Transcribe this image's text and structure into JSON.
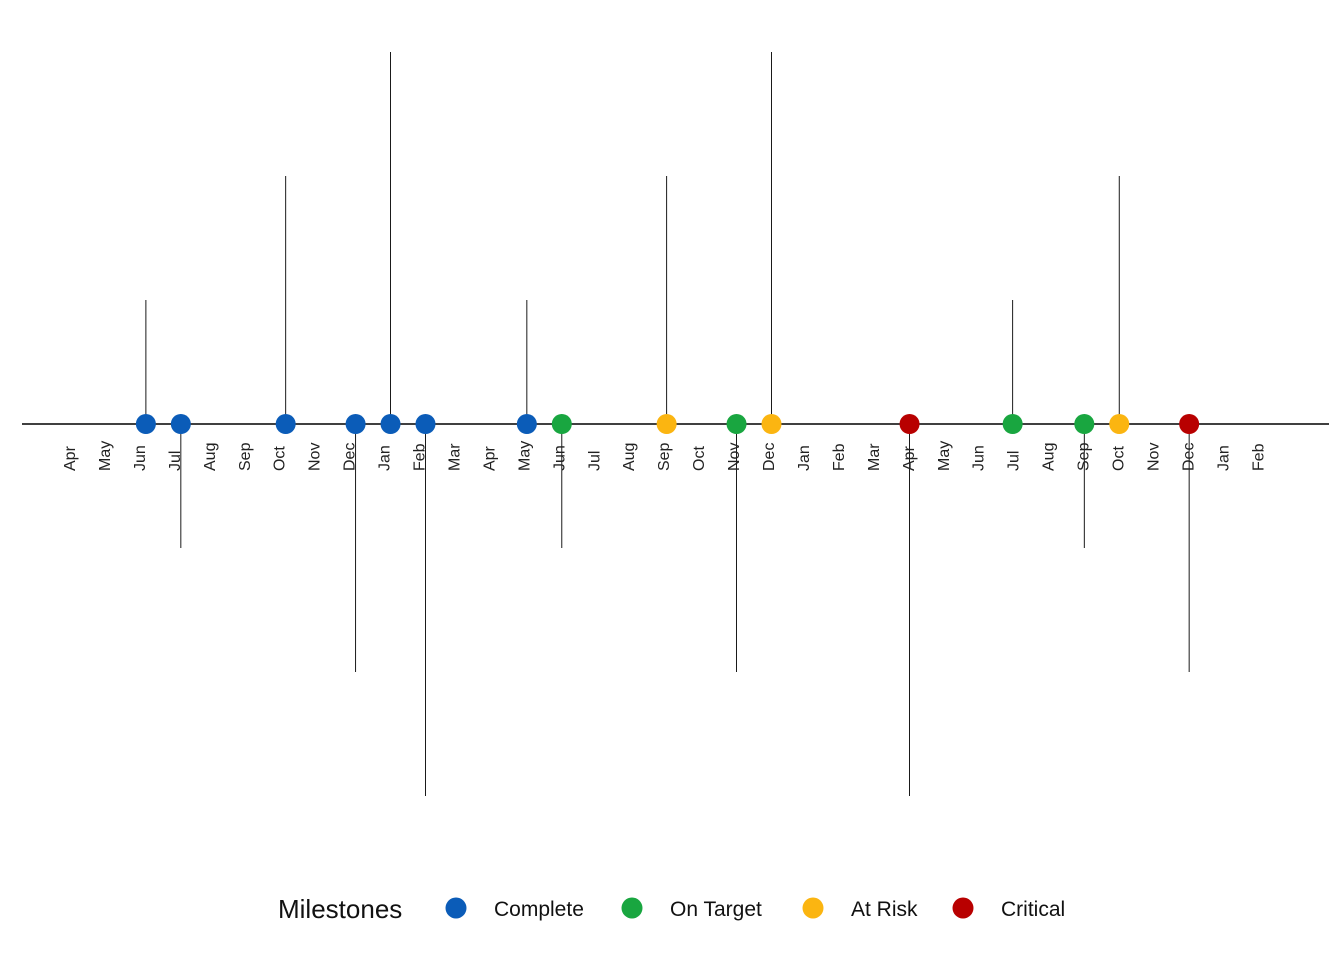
{
  "chart_data": {
    "type": "timeline",
    "title": "",
    "xlabel": "",
    "ylabel": "",
    "month_ticks": [
      "Apr",
      "May",
      "Jun",
      "Jul",
      "Aug",
      "Sep",
      "Oct",
      "Nov",
      "Dec",
      "Jan",
      "Feb",
      "Mar",
      "Apr",
      "May",
      "Jun",
      "Jul",
      "Aug",
      "Sep",
      "Oct",
      "Nov",
      "Dec",
      "Jan",
      "Feb",
      "Mar",
      "Apr",
      "May",
      "Jun",
      "Jul",
      "Aug",
      "Sep",
      "Oct",
      "Nov",
      "Dec",
      "Jan",
      "Feb"
    ],
    "legend": {
      "title": "Milestones",
      "placement": "bottom",
      "entries": [
        {
          "status": "Complete",
          "color": "#0b5cb8"
        },
        {
          "status": "On Target",
          "color": "#19a640"
        },
        {
          "status": "At Risk",
          "color": "#fbb511"
        },
        {
          "status": "Critical",
          "color": "#b80000"
        }
      ]
    },
    "milestones": [
      {
        "month_index": 2.2,
        "status": "Complete",
        "stem": 1
      },
      {
        "month_index": 3.2,
        "status": "Complete",
        "stem": -1
      },
      {
        "month_index": 6.2,
        "status": "Complete",
        "stem": 2
      },
      {
        "month_index": 8.2,
        "status": "Complete",
        "stem": -2
      },
      {
        "month_index": 9.2,
        "status": "Complete",
        "stem": 3
      },
      {
        "month_index": 10.2,
        "status": "Complete",
        "stem": -3
      },
      {
        "month_index": 13.1,
        "status": "Complete",
        "stem": 1
      },
      {
        "month_index": 14.1,
        "status": "On Target",
        "stem": -1
      },
      {
        "month_index": 17.1,
        "status": "At Risk",
        "stem": 2
      },
      {
        "month_index": 19.1,
        "status": "On Target",
        "stem": -2
      },
      {
        "month_index": 20.1,
        "status": "At Risk",
        "stem": 3
      },
      {
        "month_index": 24.05,
        "status": "Critical",
        "stem": -3
      },
      {
        "month_index": 27.0,
        "status": "On Target",
        "stem": 1
      },
      {
        "month_index": 29.05,
        "status": "On Target",
        "stem": -1
      },
      {
        "month_index": 30.05,
        "status": "At Risk",
        "stem": 2
      },
      {
        "month_index": 32.05,
        "status": "Critical",
        "stem": -2
      }
    ]
  }
}
